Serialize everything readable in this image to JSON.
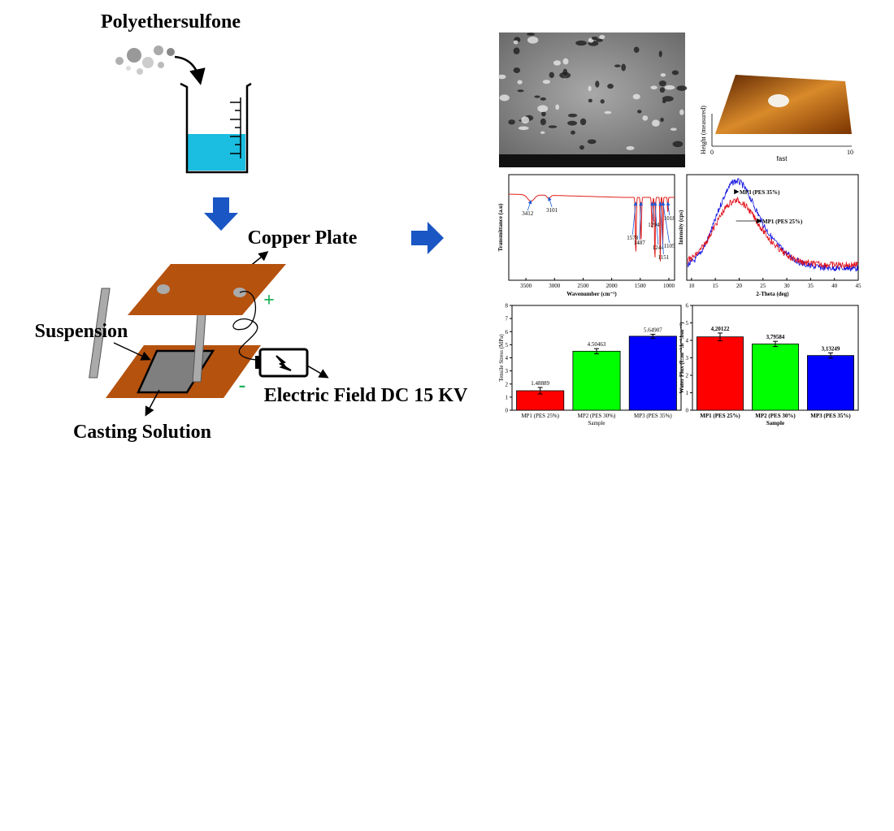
{
  "labels": {
    "polymer": "Polyethersulfone",
    "copper_plate": "Copper Plate",
    "suspension": "Suspension",
    "electric_field": "Electric Field DC 15 KV",
    "casting_solution": "Casting Solution",
    "plus": "+",
    "minus": "-"
  },
  "afm": {
    "x_label": "fast",
    "y_label": "Height (measured)",
    "xticks": [
      0,
      10
    ]
  },
  "ftir": {
    "x_label": "Wavenumber (cm⁻¹)",
    "y_label": "Transmittance (a.u)",
    "xlim": [
      3800,
      900
    ],
    "xticks": [
      3500,
      3000,
      2500,
      2000,
      1500,
      1000
    ],
    "peaks": [
      3412,
      3101,
      1578,
      1487,
      1294,
      1244,
      1151,
      1105,
      1018
    ],
    "color": "#e0201b"
  },
  "xrd": {
    "x_label": "2-Theta (deg)",
    "y_label": "Intensity (cps)",
    "xlim": [
      9,
      45
    ],
    "xticks": [
      10,
      15,
      20,
      25,
      30,
      35,
      40,
      45
    ],
    "series": [
      {
        "name": "MP3 (PES 35%)",
        "color": "#1010e0"
      },
      {
        "name": "MP1 (PES 25%)",
        "color": "#e0101a"
      }
    ]
  },
  "tensile": {
    "x_label": "Sample",
    "y_label": "Tensile Stress (MPa)",
    "categories": [
      "MP1 (PES 25%)",
      "MP2 (PES 30%)",
      "MP3 (PES 35%)"
    ],
    "values": [
      1.48889,
      4.50463,
      5.64907
    ],
    "errors": [
      0.25,
      0.2,
      0.15
    ],
    "colors": [
      "#ff0000",
      "#00ff00",
      "#0000ff"
    ],
    "ylim": [
      0,
      8
    ],
    "yticks": [
      0,
      1,
      2,
      3,
      4,
      5,
      6,
      7,
      8
    ]
  },
  "flux": {
    "x_label": "Sample",
    "y_label": "Water Flux (L.m⁻².h⁻¹.bar⁻¹)",
    "categories": [
      "MP1 (PES 25%)",
      "MP2 (PES 30%)",
      "MP3 (PES 35%)"
    ],
    "values": [
      4.20122,
      3.79584,
      3.13249
    ],
    "value_labels": [
      "4,20122",
      "3,79584",
      "3,13249"
    ],
    "errors": [
      0.22,
      0.15,
      0.15
    ],
    "colors": [
      "#ff0000",
      "#00ff00",
      "#0000ff"
    ],
    "ylim": [
      0,
      6
    ],
    "yticks": [
      0,
      1,
      2,
      3,
      4,
      5,
      6
    ]
  }
}
